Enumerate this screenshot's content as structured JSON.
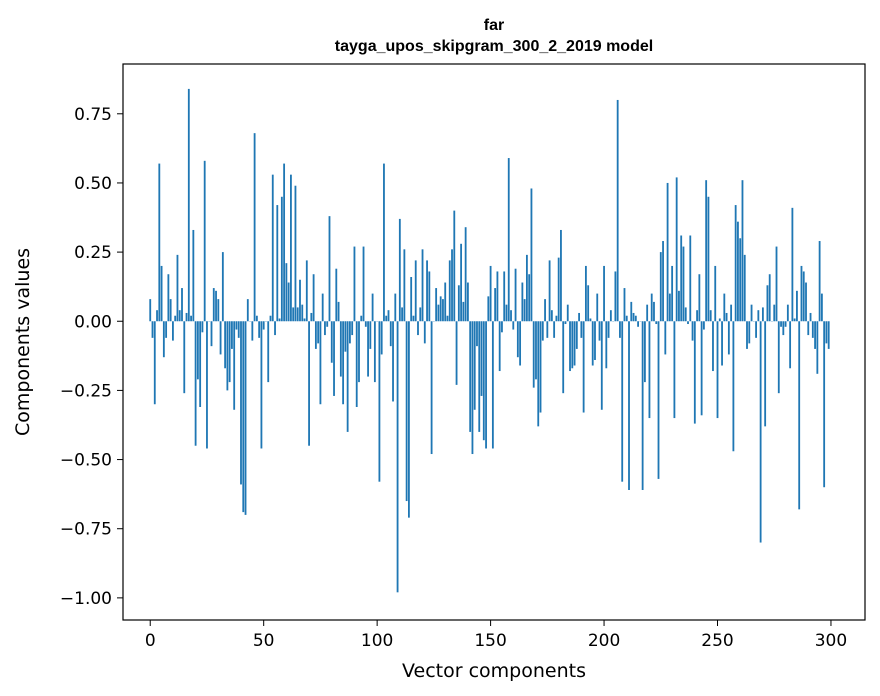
{
  "chart_data": {
    "type": "bar",
    "title": "far",
    "subtitle": "tayga_upos_skipgram_300_2_2019 model",
    "xlabel": "Vector components",
    "ylabel": "Components values",
    "xlim": [
      -12,
      315
    ],
    "ylim": [
      -1.08,
      0.93
    ],
    "xticks": [
      0,
      50,
      100,
      150,
      200,
      250,
      300
    ],
    "xtick_labels": [
      "0",
      "50",
      "100",
      "150",
      "200",
      "250",
      "300"
    ],
    "yticks": [
      0.75,
      0.5,
      0.25,
      0.0,
      -0.25,
      -0.5,
      -0.75,
      -1.0
    ],
    "ytick_labels": [
      "0.75",
      "0.50",
      "0.25",
      "0.00",
      "−0.25",
      "−0.50",
      "−0.75",
      "−1.00"
    ],
    "bar_color": "#1f77b4",
    "x": "0..299",
    "values": [
      0.08,
      -0.06,
      -0.3,
      0.04,
      0.57,
      0.2,
      -0.13,
      -0.06,
      0.17,
      0.08,
      -0.07,
      0.02,
      0.24,
      0.04,
      0.12,
      -0.26,
      0.03,
      0.84,
      0.02,
      0.33,
      -0.45,
      -0.21,
      -0.31,
      -0.04,
      0.58,
      -0.46,
      0.0,
      -0.09,
      0.12,
      0.11,
      0.08,
      -0.12,
      0.25,
      -0.17,
      -0.25,
      -0.22,
      -0.1,
      -0.32,
      -0.03,
      -0.06,
      -0.59,
      -0.69,
      -0.7,
      0.08,
      0.0,
      -0.07,
      0.68,
      0.02,
      -0.06,
      -0.46,
      -0.03,
      0.0,
      -0.22,
      0.02,
      0.53,
      -0.05,
      0.42,
      0.01,
      0.45,
      0.57,
      0.21,
      0.14,
      0.53,
      0.05,
      0.49,
      0.05,
      0.15,
      0.06,
      0.01,
      0.22,
      -0.45,
      0.03,
      0.17,
      -0.1,
      -0.08,
      -0.3,
      0.1,
      -0.05,
      -0.02,
      0.38,
      -0.15,
      -0.27,
      0.19,
      0.07,
      -0.2,
      -0.3,
      -0.11,
      -0.4,
      -0.08,
      -0.05,
      0.27,
      -0.31,
      -0.22,
      0.02,
      0.27,
      -0.02,
      -0.2,
      -0.1,
      0.1,
      -0.22,
      0.0,
      -0.58,
      -0.12,
      0.57,
      0.02,
      0.04,
      -0.09,
      -0.29,
      0.1,
      -0.98,
      0.37,
      0.05,
      0.26,
      -0.65,
      -0.71,
      0.16,
      0.02,
      0.22,
      -0.05,
      0.05,
      0.26,
      -0.08,
      0.22,
      0.18,
      -0.48,
      0.0,
      0.12,
      0.06,
      0.09,
      0.08,
      0.14,
      0.02,
      0.22,
      0.26,
      0.4,
      -0.23,
      0.13,
      0.28,
      0.07,
      0.34,
      0.14,
      -0.4,
      -0.48,
      -0.32,
      -0.09,
      -0.4,
      -0.27,
      -0.43,
      -0.46,
      0.09,
      0.2,
      -0.46,
      0.12,
      0.18,
      -0.18,
      -0.04,
      0.18,
      0.06,
      0.59,
      0.04,
      -0.03,
      0.19,
      -0.13,
      -0.16,
      0.14,
      0.08,
      0.24,
      0.17,
      0.48,
      -0.24,
      -0.21,
      -0.38,
      -0.33,
      -0.07,
      0.08,
      -0.06,
      0.22,
      0.04,
      -0.06,
      0.02,
      0.23,
      0.33,
      -0.26,
      -0.01,
      0.06,
      -0.18,
      -0.17,
      -0.16,
      -0.1,
      0.03,
      -0.06,
      -0.33,
      0.2,
      0.13,
      0.01,
      -0.16,
      -0.14,
      0.1,
      -0.07,
      -0.32,
      0.2,
      -0.17,
      -0.06,
      0.04,
      0.0,
      0.18,
      0.8,
      -0.06,
      -0.58,
      0.12,
      0.02,
      -0.61,
      0.07,
      0.03,
      0.02,
      -0.02,
      0.0,
      -0.61,
      -0.22,
      0.06,
      -0.35,
      0.1,
      0.07,
      -0.01,
      -0.57,
      0.25,
      0.29,
      -0.12,
      0.5,
      0.1,
      0.2,
      -0.35,
      0.52,
      0.11,
      0.31,
      0.27,
      0.05,
      -0.01,
      0.31,
      -0.07,
      -0.37,
      0.04,
      0.17,
      -0.34,
      -0.03,
      0.51,
      0.45,
      0.04,
      -0.18,
      0.2,
      -0.35,
      0.01,
      -0.16,
      0.1,
      0.03,
      -0.12,
      0.06,
      -0.47,
      0.42,
      0.36,
      0.3,
      0.51,
      0.24,
      -0.1,
      -0.08,
      0.06,
      0.0,
      -0.06,
      0.04,
      -0.8,
      0.05,
      -0.38,
      0.13,
      0.17,
      0.0,
      0.06,
      0.27,
      -0.26,
      -0.02,
      -0.05,
      -0.02,
      0.06,
      -0.17,
      0.41,
      0.01,
      0.11,
      -0.68,
      0.2,
      0.18,
      0.14,
      -0.05,
      0.03,
      -0.06,
      -0.1,
      -0.19,
      0.29,
      0.1,
      -0.6,
      -0.08,
      -0.1
    ]
  }
}
